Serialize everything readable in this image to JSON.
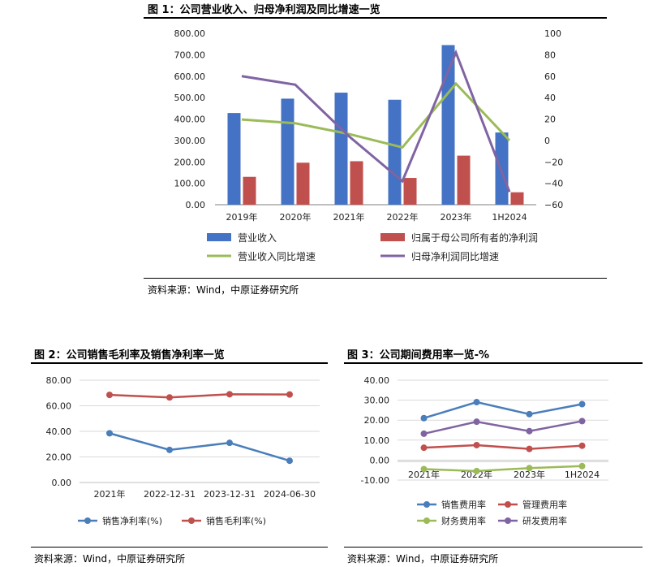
{
  "figures": [
    {
      "title": "图 1：公司营业收入、归母净利润及同比增速一览",
      "source": "资料来源：Wind，中原证券研究所"
    },
    {
      "title": "图 2：公司销售毛利率及销售净利率一览",
      "source": "资料来源：Wind，中原证券研究所"
    },
    {
      "title": "图 3：公司期间费用率一览-%",
      "source": "资料来源：Wind，中原证券研究所"
    }
  ],
  "chart_data": [
    {
      "type": "bar",
      "title": "",
      "categories": [
        "2019年",
        "2020年",
        "2021年",
        "2022年",
        "2023年",
        "1H2024"
      ],
      "ylim": [
        0,
        800
      ],
      "y_ticks": [
        "0.00",
        "100.00",
        "200.00",
        "300.00",
        "400.00",
        "500.00",
        "600.00",
        "700.00",
        "800.00"
      ],
      "y2lim": [
        -60,
        100
      ],
      "y2_ticks": [
        "−60",
        "−40",
        "−20",
        "0",
        "20",
        "40",
        "60",
        "80",
        "100"
      ],
      "series": [
        {
          "name": "营业收入",
          "kind": "bar",
          "axis": "left",
          "color": "#4472C4",
          "values": [
            428,
            495,
            523,
            490,
            745,
            337
          ]
        },
        {
          "name": "归属于母公司所有者的净利润",
          "kind": "bar",
          "axis": "left",
          "color": "#C0504D",
          "values": [
            130,
            196,
            203,
            125,
            229,
            58
          ]
        },
        {
          "name": "营业收入同比增速",
          "kind": "line",
          "axis": "right",
          "color": "#9BBB59",
          "values": [
            19.5,
            16,
            6,
            -6.5,
            53,
            0
          ]
        },
        {
          "name": "归母净利润同比增速",
          "kind": "line",
          "axis": "right",
          "color": "#8064A2",
          "values": [
            60,
            52,
            4,
            -38,
            82,
            -48
          ]
        }
      ],
      "grid": false,
      "legend_position": "bottom"
    },
    {
      "type": "line",
      "title": "",
      "categories": [
        "2021年",
        "2022-12-31",
        "2023-12-31",
        "2024-06-30"
      ],
      "ylim": [
        0,
        80
      ],
      "y_ticks": [
        "0.00",
        "20.00",
        "40.00",
        "60.00",
        "80.00"
      ],
      "series": [
        {
          "name": "销售净利率(%)",
          "color": "#4A7EBB",
          "values": [
            38.5,
            25.5,
            31,
            17
          ]
        },
        {
          "name": "销售毛利率(%)",
          "color": "#C0504D",
          "values": [
            68.5,
            66.5,
            69,
            68.8
          ]
        }
      ],
      "grid": true,
      "legend_position": "bottom"
    },
    {
      "type": "line",
      "title": "",
      "categories": [
        "2021年",
        "2022年",
        "2023年",
        "1H2024"
      ],
      "ylim": [
        -10,
        40
      ],
      "y_ticks": [
        "-10.00",
        "0.00",
        "10.00",
        "20.00",
        "30.00",
        "40.00"
      ],
      "series": [
        {
          "name": "销售费用率",
          "color": "#4A7EBB",
          "values": [
            21,
            29,
            23,
            28
          ]
        },
        {
          "name": "管理费用率",
          "color": "#C0504D",
          "values": [
            6.2,
            7.5,
            5.6,
            7.2
          ]
        },
        {
          "name": "财务费用率",
          "color": "#9BBB59",
          "values": [
            -4.5,
            -5.5,
            -4,
            -3
          ]
        },
        {
          "name": "研发费用率",
          "color": "#8064A2",
          "values": [
            13.2,
            19.2,
            14.5,
            19.5
          ]
        }
      ],
      "grid": true,
      "legend_position": "bottom"
    }
  ]
}
